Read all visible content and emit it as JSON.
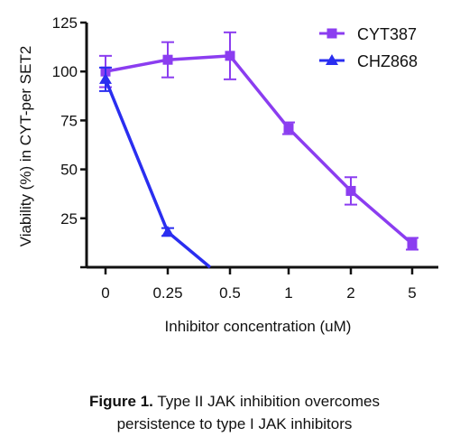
{
  "chart_data": {
    "type": "line",
    "xlabel": "Inhibitor concentration (uM)",
    "ylabel": "Viability (%) in CYT-per SET2",
    "categories": [
      "0",
      "0.25",
      "0.5",
      "1",
      "2",
      "5"
    ],
    "yticks": [
      "25",
      "50",
      "75",
      "100",
      "125"
    ],
    "ylim": [
      0,
      125
    ],
    "grid": false,
    "legend_position": "top-right",
    "series": [
      {
        "name": "CYT387",
        "marker": "square",
        "color": "#8b3df0",
        "x": [
          "0",
          "0.25",
          "0.5",
          "1",
          "2",
          "5"
        ],
        "values": [
          100,
          106,
          108,
          71,
          39,
          12
        ],
        "err": [
          8,
          9,
          12,
          3,
          7,
          3
        ]
      },
      {
        "name": "CHZ868",
        "marker": "triangle",
        "color": "#2a2ef0",
        "x": [
          "0",
          "0.25"
        ],
        "values": [
          96,
          18
        ],
        "err": [
          6,
          2
        ],
        "extend_to_zero_at": 0.42
      }
    ]
  },
  "caption": {
    "label": "Figure 1.",
    "text": " Type II JAK inhibition overcomes",
    "line2": "persistence to type I JAK inhibitors"
  }
}
